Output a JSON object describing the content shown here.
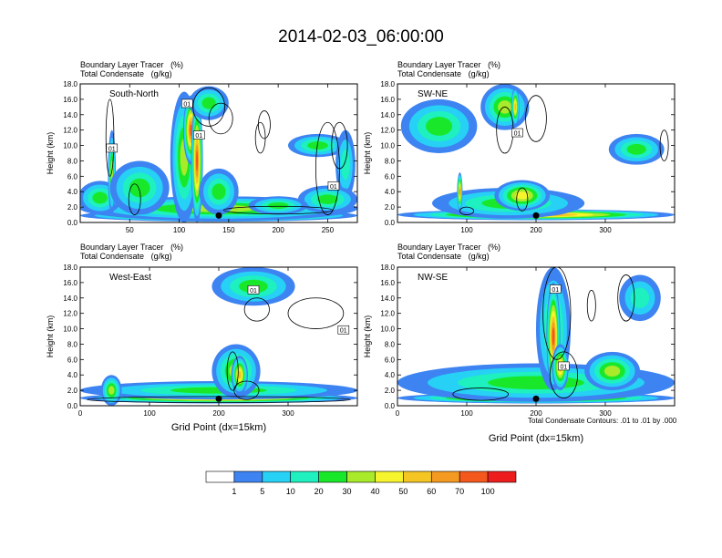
{
  "title": "2014-02-03_06:00:00",
  "chart_data": [
    {
      "type": "heatmap",
      "panel_title": "South-North",
      "field_label": "Boundary Layer Tracer",
      "field_unit": "(%)",
      "contour_label": "Total Condensate",
      "contour_unit": "(g/kg)",
      "ylabel": "Height (km)",
      "xlabel": "",
      "xlim": [
        0,
        280
      ],
      "ylim": [
        0,
        18
      ],
      "xticks": [
        50,
        100,
        150,
        200,
        250
      ],
      "yticks": [
        "0.0",
        "2.0",
        "4.0",
        "6.0",
        "8.0",
        "10.0",
        "12.0",
        "14.0",
        "16.0",
        "18.0"
      ],
      "marker_x": 140,
      "contour_labels": [
        {
          "text": "01",
          "x": 32,
          "y": 9.6
        },
        {
          "text": "01",
          "x": 108,
          "y": 15.4
        },
        {
          "text": "01",
          "x": 120,
          "y": 11.3
        },
        {
          "text": "01",
          "x": 256,
          "y": 4.7
        }
      ],
      "blobs": [
        {
          "x": 140,
          "y": 0.9,
          "rx": 140,
          "ry": 0.8,
          "level": 9
        },
        {
          "x": 140,
          "y": 1.8,
          "rx": 140,
          "ry": 1.6,
          "level": 5
        },
        {
          "x": 20,
          "y": 3.2,
          "rx": 22,
          "ry": 2.2,
          "level": 4
        },
        {
          "x": 32,
          "y": 6.5,
          "rx": 4,
          "ry": 5.5,
          "level": 5
        },
        {
          "x": 60,
          "y": 4.5,
          "rx": 30,
          "ry": 3.5,
          "level": 4
        },
        {
          "x": 105,
          "y": 8.5,
          "rx": 14,
          "ry": 8.5,
          "level": 5
        },
        {
          "x": 112,
          "y": 12,
          "rx": 8,
          "ry": 4.5,
          "level": 9
        },
        {
          "x": 118,
          "y": 8,
          "rx": 6,
          "ry": 8,
          "level": 9
        },
        {
          "x": 130,
          "y": 15.5,
          "rx": 20,
          "ry": 2.2,
          "level": 4
        },
        {
          "x": 140,
          "y": 4,
          "rx": 20,
          "ry": 3,
          "level": 4
        },
        {
          "x": 240,
          "y": 10,
          "rx": 30,
          "ry": 1.5,
          "level": 4
        },
        {
          "x": 268,
          "y": 7.5,
          "rx": 10,
          "ry": 4.5,
          "level": 3
        },
        {
          "x": 250,
          "y": 3,
          "rx": 30,
          "ry": 1.8,
          "level": 4
        },
        {
          "x": 200,
          "y": 2.2,
          "rx": 30,
          "ry": 1.2,
          "level": 4
        }
      ],
      "contours": [
        {
          "x": 30,
          "y": 11,
          "rx": 4,
          "ry": 5
        },
        {
          "x": 55,
          "y": 3,
          "rx": 6,
          "ry": 2
        },
        {
          "x": 142,
          "y": 13.5,
          "rx": 12,
          "ry": 2
        },
        {
          "x": 130,
          "y": 15,
          "rx": 16,
          "ry": 2.5
        },
        {
          "x": 182,
          "y": 11,
          "rx": 5,
          "ry": 2
        },
        {
          "x": 186,
          "y": 12.7,
          "rx": 6,
          "ry": 1.8
        },
        {
          "x": 250,
          "y": 7,
          "rx": 12,
          "ry": 6
        },
        {
          "x": 262,
          "y": 10,
          "rx": 8,
          "ry": 3
        },
        {
          "x": 200,
          "y": 1.6,
          "rx": 55,
          "ry": 0.5
        }
      ]
    },
    {
      "type": "heatmap",
      "panel_title": "SW-NE",
      "field_label": "Boundary Layer Tracer",
      "field_unit": "(%)",
      "contour_label": "Total Condensate",
      "contour_unit": "(g/kg)",
      "ylabel": "Height (km)",
      "xlabel": "",
      "xlim": [
        0,
        400
      ],
      "ylim": [
        0,
        18
      ],
      "xticks": [
        100,
        200,
        300
      ],
      "yticks": [
        "0.0",
        "2.0",
        "4.0",
        "6.0",
        "8.0",
        "10.0",
        "12.0",
        "14.0",
        "16.0",
        "18.0"
      ],
      "marker_x": 200,
      "contour_labels": [
        {
          "text": "01",
          "x": 173,
          "y": 11.6
        }
      ],
      "blobs": [
        {
          "x": 200,
          "y": 1.0,
          "rx": 200,
          "ry": 0.7,
          "level": 8
        },
        {
          "x": 160,
          "y": 2.5,
          "rx": 110,
          "ry": 2,
          "level": 4
        },
        {
          "x": 60,
          "y": 12.5,
          "rx": 55,
          "ry": 3.5,
          "level": 4
        },
        {
          "x": 155,
          "y": 15,
          "rx": 35,
          "ry": 3,
          "level": 5
        },
        {
          "x": 170,
          "y": 15,
          "rx": 6,
          "ry": 2.5,
          "level": 7
        },
        {
          "x": 90,
          "y": 4,
          "rx": 4,
          "ry": 2.5,
          "level": 8
        },
        {
          "x": 345,
          "y": 9.5,
          "rx": 40,
          "ry": 2,
          "level": 4
        },
        {
          "x": 180,
          "y": 3.5,
          "rx": 40,
          "ry": 2,
          "level": 6
        }
      ],
      "contours": [
        {
          "x": 155,
          "y": 12,
          "rx": 12,
          "ry": 3
        },
        {
          "x": 200,
          "y": 13.5,
          "rx": 15,
          "ry": 3
        },
        {
          "x": 180,
          "y": 3,
          "rx": 8,
          "ry": 1.5
        },
        {
          "x": 100,
          "y": 1.5,
          "rx": 10,
          "ry": 0.5
        },
        {
          "x": 385,
          "y": 10,
          "rx": 6,
          "ry": 2
        }
      ]
    },
    {
      "type": "heatmap",
      "panel_title": "West-East",
      "field_label": "Boundary Layer Tracer",
      "field_unit": "(%)",
      "contour_label": "Total Condensate",
      "contour_unit": "(g/kg)",
      "ylabel": "Height (km)",
      "xlabel": "Grid Point (dx=15km)",
      "xlim": [
        0,
        400
      ],
      "ylim": [
        0,
        18
      ],
      "xticks": [
        0,
        100,
        200,
        300
      ],
      "yticks": [
        "0.0",
        "2.0",
        "4.0",
        "6.0",
        "8.0",
        "10.0",
        "12.0",
        "14.0",
        "16.0",
        "18.0"
      ],
      "marker_x": 200,
      "contour_labels": [
        {
          "text": "01",
          "x": 250,
          "y": 15.0
        },
        {
          "text": "01",
          "x": 380,
          "y": 9.8
        }
      ],
      "blobs": [
        {
          "x": 200,
          "y": 1.0,
          "rx": 200,
          "ry": 0.7,
          "level": 8
        },
        {
          "x": 200,
          "y": 2.0,
          "rx": 200,
          "ry": 1.2,
          "level": 4
        },
        {
          "x": 225,
          "y": 4.5,
          "rx": 35,
          "ry": 3.5,
          "level": 5
        },
        {
          "x": 230,
          "y": 4,
          "rx": 12,
          "ry": 2.5,
          "level": 7
        },
        {
          "x": 250,
          "y": 15.5,
          "rx": 60,
          "ry": 2.5,
          "level": 4
        },
        {
          "x": 45,
          "y": 2,
          "rx": 15,
          "ry": 2,
          "level": 5
        }
      ],
      "contours": [
        {
          "x": 255,
          "y": 12.5,
          "rx": 18,
          "ry": 1.5
        },
        {
          "x": 340,
          "y": 12,
          "rx": 40,
          "ry": 2
        },
        {
          "x": 240,
          "y": 2,
          "rx": 18,
          "ry": 1.2
        },
        {
          "x": 220,
          "y": 4.5,
          "rx": 8,
          "ry": 2.5
        },
        {
          "x": 200,
          "y": 0.8,
          "rx": 190,
          "ry": 0.4
        }
      ]
    },
    {
      "type": "heatmap",
      "panel_title": "NW-SE",
      "field_label": "Boundary Layer Tracer",
      "field_unit": "(%)",
      "contour_label": "Total Condensate",
      "contour_unit": "(g/kg)",
      "ylabel": "Height (km)",
      "xlabel": "Grid Point (dx=15km)",
      "xlim": [
        0,
        400
      ],
      "ylim": [
        0,
        18
      ],
      "xticks": [
        0,
        100,
        200,
        300
      ],
      "yticks": [
        "0.0",
        "2.0",
        "4.0",
        "6.0",
        "8.0",
        "10.0",
        "12.0",
        "14.0",
        "16.0",
        "18.0"
      ],
      "marker_x": 200,
      "contour_labels": [
        {
          "text": "01",
          "x": 228,
          "y": 15.1
        },
        {
          "text": "01",
          "x": 240,
          "y": 5.1
        }
      ],
      "blobs": [
        {
          "x": 200,
          "y": 1.0,
          "rx": 200,
          "ry": 0.7,
          "level": 8
        },
        {
          "x": 200,
          "y": 3.0,
          "rx": 200,
          "ry": 2.5,
          "level": 4
        },
        {
          "x": 225,
          "y": 10,
          "rx": 25,
          "ry": 8,
          "level": 4
        },
        {
          "x": 225,
          "y": 9,
          "rx": 10,
          "ry": 7,
          "level": 9
        },
        {
          "x": 235,
          "y": 5,
          "rx": 12,
          "ry": 3,
          "level": 7
        },
        {
          "x": 310,
          "y": 4.5,
          "rx": 40,
          "ry": 2.5,
          "level": 5
        },
        {
          "x": 350,
          "y": 14,
          "rx": 30,
          "ry": 3,
          "level": 3
        }
      ],
      "contours": [
        {
          "x": 230,
          "y": 12,
          "rx": 20,
          "ry": 6
        },
        {
          "x": 280,
          "y": 13,
          "rx": 6,
          "ry": 2
        },
        {
          "x": 330,
          "y": 14,
          "rx": 12,
          "ry": 3
        },
        {
          "x": 240,
          "y": 4,
          "rx": 20,
          "ry": 3
        },
        {
          "x": 120,
          "y": 1.5,
          "rx": 40,
          "ry": 0.8
        }
      ]
    }
  ],
  "colorbar": {
    "labels": [
      "1",
      "5",
      "10",
      "20",
      "30",
      "40",
      "50",
      "60",
      "70",
      "100"
    ],
    "colors": [
      "#ffffff",
      "#3d84f2",
      "#27d0f5",
      "#1ef0c0",
      "#19e82a",
      "#a9ea2b",
      "#f6f52d",
      "#f5c623",
      "#f59a21",
      "#f5581d",
      "#ee1d1d"
    ]
  },
  "contour_note": "Total Condensate Contours: .01 to .01 by .000"
}
